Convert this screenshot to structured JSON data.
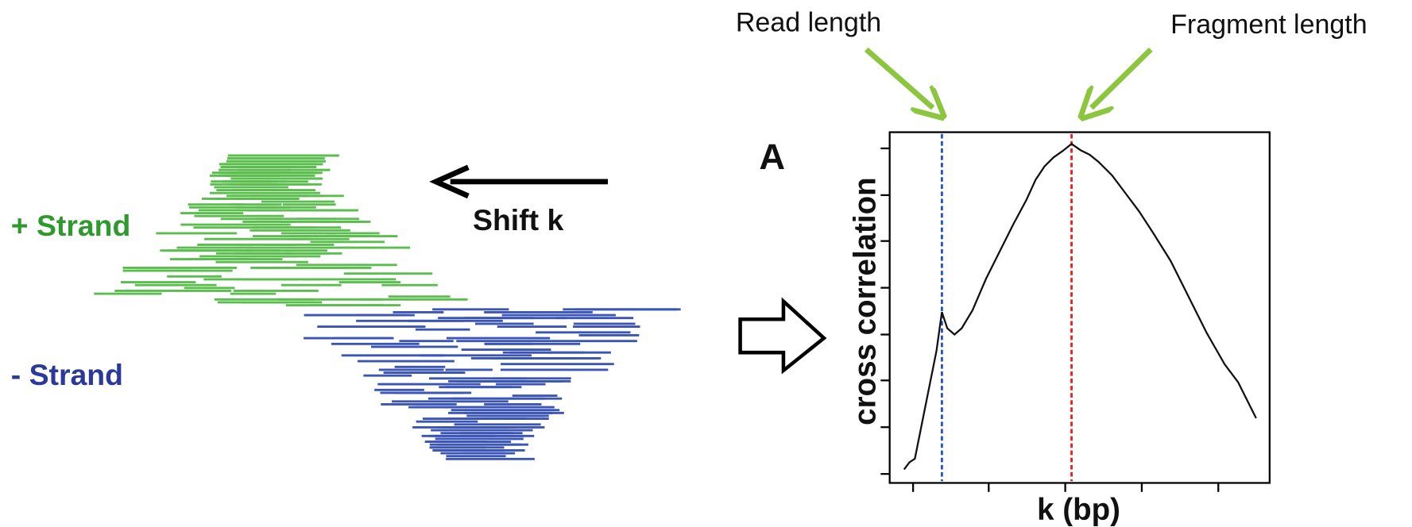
{
  "annotations": {
    "read_length": "Read length",
    "fragment_length": "Fragment length"
  },
  "strands": {
    "plus": "+ Strand",
    "minus": "- Strand",
    "shift": "Shift k"
  },
  "plot": {
    "panel_label": "A",
    "y_label": "cross correlation",
    "x_label": "k (bp)"
  }
}
